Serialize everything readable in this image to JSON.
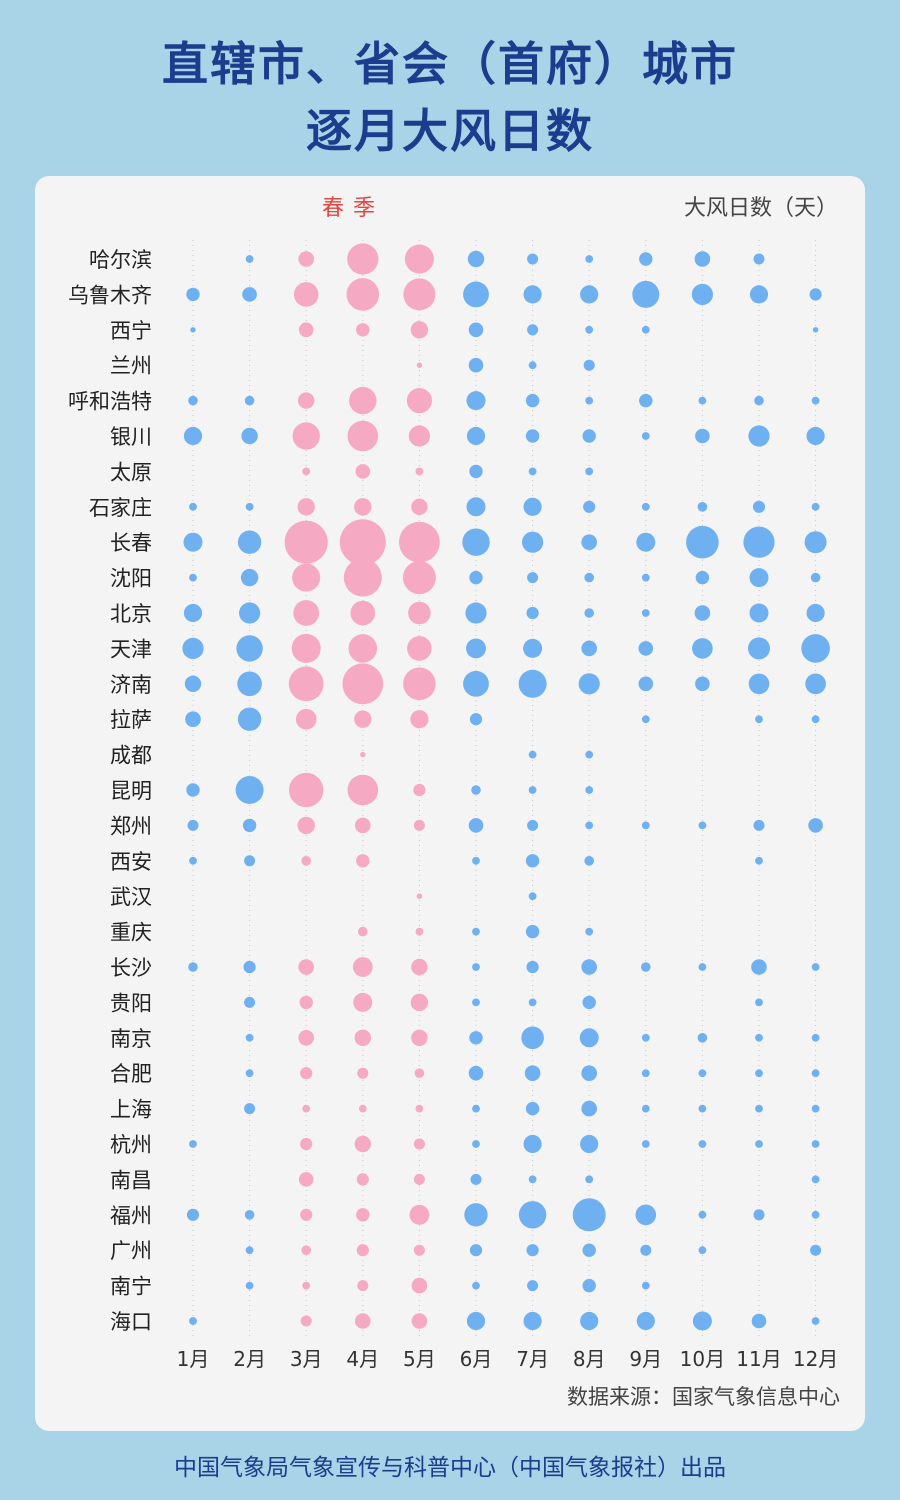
{
  "header": {
    "title_line1": "直辖市、省会（首府）城市",
    "title_line2": "逐月大风日数"
  },
  "labels": {
    "season": "春  季",
    "unit": "大风日数（天）",
    "source": "数据来源：国家气象信息中心",
    "footer": "中国气象局气象宣传与科普中心（中国气象报社）出品"
  },
  "colors": {
    "background": "#a9d3e6",
    "title": "#1c3c8e",
    "spring": "#f6a9c2",
    "other": "#6fb0f0",
    "season_label": "#e8443e"
  },
  "chart_data": {
    "type": "scatter",
    "title": "直辖市、省会（首府）城市逐月大风日数",
    "unit": "大风日数（天）",
    "months": [
      "1月",
      "2月",
      "3月",
      "4月",
      "5月",
      "6月",
      "7月",
      "8月",
      "9月",
      "10月",
      "11月",
      "12月"
    ],
    "spring_months": [
      "3月",
      "4月",
      "5月"
    ],
    "cities": [
      "哈尔滨",
      "乌鲁木齐",
      "西宁",
      "兰州",
      "呼和浩特",
      "银川",
      "太原",
      "石家庄",
      "长春",
      "沈阳",
      "北京",
      "天津",
      "济南",
      "拉萨",
      "成都",
      "昆明",
      "郑州",
      "西安",
      "武汉",
      "重庆",
      "长沙",
      "贵阳",
      "南京",
      "合肥",
      "上海",
      "杭州",
      "南昌",
      "福州",
      "广州",
      "南宁",
      "海口"
    ],
    "values": [
      [
        0,
        0.2,
        0.8,
        3.2,
        2.8,
        0.9,
        0.4,
        0.2,
        0.6,
        0.8,
        0.4,
        0
      ],
      [
        0.6,
        0.7,
        2.0,
        3.5,
        3.4,
        2.2,
        1.1,
        1.1,
        2.4,
        1.5,
        1.1,
        0.5
      ],
      [
        0.1,
        0,
        0.7,
        0.6,
        1.0,
        0.7,
        0.4,
        0.2,
        0.2,
        0,
        0,
        0.1
      ],
      [
        0,
        0,
        0,
        0,
        0.1,
        0.7,
        0.2,
        0.4,
        0,
        0,
        0,
        0
      ],
      [
        0.3,
        0.3,
        0.9,
        2.5,
        2.1,
        1.2,
        0.6,
        0.2,
        0.6,
        0.2,
        0.3,
        0.2
      ],
      [
        1.1,
        0.9,
        2.5,
        3.1,
        1.5,
        1.1,
        0.6,
        0.6,
        0.2,
        0.7,
        1.5,
        1.1
      ],
      [
        0,
        0,
        0.2,
        0.7,
        0.2,
        0.6,
        0.2,
        0.2,
        0,
        0,
        0,
        0
      ],
      [
        0.2,
        0.2,
        1.0,
        1.0,
        0.9,
        1.2,
        1.1,
        0.5,
        0.2,
        0.3,
        0.5,
        0.2
      ],
      [
        1.2,
        1.8,
        6.2,
        7.0,
        5.5,
        2.5,
        1.5,
        0.8,
        1.2,
        3.5,
        3.2,
        1.6
      ],
      [
        0.2,
        1.0,
        2.6,
        4.8,
        3.6,
        0.6,
        0.4,
        0.3,
        0.2,
        0.6,
        1.2,
        0.3
      ],
      [
        1.1,
        1.5,
        2.2,
        2.0,
        1.7,
        1.5,
        0.5,
        0.3,
        0.2,
        0.8,
        1.2,
        1.1
      ],
      [
        1.5,
        2.3,
        2.8,
        2.7,
        2.0,
        1.3,
        1.2,
        0.8,
        0.7,
        1.4,
        1.6,
        2.7
      ],
      [
        0.9,
        2.0,
        4.0,
        5.5,
        3.5,
        2.2,
        2.6,
        1.5,
        0.7,
        0.7,
        1.4,
        1.4
      ],
      [
        0.8,
        1.8,
        1.4,
        1.0,
        1.1,
        0.5,
        0,
        0,
        0.2,
        0,
        0.2,
        0.2
      ],
      [
        0,
        0,
        0,
        0.1,
        0,
        0,
        0.2,
        0.2,
        0,
        0,
        0,
        0
      ],
      [
        0.6,
        2.6,
        3.9,
        3.1,
        0.5,
        0.3,
        0.2,
        0.2,
        0,
        0,
        0,
        0
      ],
      [
        0.4,
        0.6,
        1.0,
        0.8,
        0.4,
        0.7,
        0.4,
        0.2,
        0.2,
        0.2,
        0.4,
        0.7
      ],
      [
        0.2,
        0.4,
        0.3,
        0.6,
        0,
        0.2,
        0.6,
        0.3,
        0,
        0,
        0.2,
        0
      ],
      [
        0,
        0,
        0,
        0,
        0.1,
        0,
        0.2,
        0,
        0,
        0,
        0,
        0
      ],
      [
        0,
        0,
        0,
        0.3,
        0.2,
        0.2,
        0.6,
        0.2,
        0,
        0,
        0,
        0
      ],
      [
        0.3,
        0.5,
        0.8,
        1.3,
        0.9,
        0.2,
        0.5,
        0.8,
        0.3,
        0.2,
        0.8,
        0.2
      ],
      [
        0,
        0.4,
        0.6,
        1.2,
        1.0,
        0.2,
        0.2,
        0.6,
        0,
        0,
        0.2,
        0
      ],
      [
        0,
        0.2,
        0.8,
        0.9,
        0.9,
        0.6,
        1.7,
        1.2,
        0.2,
        0.3,
        0.2,
        0.2
      ],
      [
        0,
        0.2,
        0.5,
        0.4,
        0.3,
        0.7,
        0.8,
        0.8,
        0.2,
        0.2,
        0.2,
        0.2
      ],
      [
        0,
        0.4,
        0.2,
        0.2,
        0.2,
        0.2,
        0.6,
        0.8,
        0.2,
        0.2,
        0.2,
        0.2
      ],
      [
        0.2,
        0,
        0.5,
        0.9,
        0.4,
        0.2,
        1.1,
        1.1,
        0.2,
        0.2,
        0.2,
        0.2
      ],
      [
        0,
        0,
        0.7,
        0.5,
        0.4,
        0.4,
        0.2,
        0.2,
        0,
        0,
        0,
        0.2
      ],
      [
        0.5,
        0.3,
        0.5,
        0.6,
        1.3,
        1.8,
        2.5,
        3.6,
        1.4,
        0.2,
        0.4,
        0.2
      ],
      [
        0,
        0.2,
        0.3,
        0.5,
        0.4,
        0.5,
        0.5,
        0.6,
        0.4,
        0.2,
        0,
        0.4
      ],
      [
        0,
        0.2,
        0.2,
        0.4,
        0.8,
        0.2,
        0.4,
        0.6,
        0.2,
        0,
        0,
        0
      ],
      [
        0.2,
        0,
        0.4,
        0.8,
        0.8,
        1.1,
        1.1,
        1.1,
        1.1,
        1.2,
        0.7,
        0.2
      ]
    ]
  }
}
